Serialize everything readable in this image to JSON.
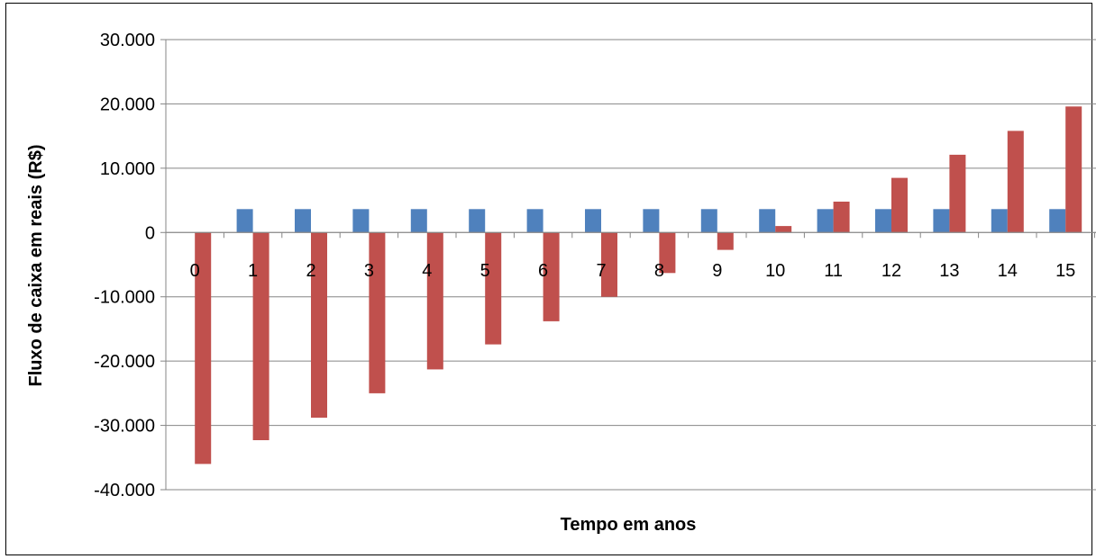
{
  "chart_data": {
    "type": "bar",
    "title": "",
    "xlabel": "Tempo em anos",
    "ylabel": "Fluxo de caixa em reais (R$)",
    "ylim": [
      -40000,
      30000
    ],
    "yticks": [
      30000,
      20000,
      10000,
      0,
      -10000,
      -20000,
      -30000,
      -40000
    ],
    "ytick_labels": [
      "30.000",
      "20.000",
      "10.000",
      "0",
      "-10.000",
      "-20.000",
      "-30.000",
      "-40.000"
    ],
    "categories": [
      "0",
      "1",
      "2",
      "3",
      "4",
      "5",
      "6",
      "7",
      "8",
      "9",
      "10",
      "11",
      "12",
      "13",
      "14",
      "15"
    ],
    "grid": true,
    "legend": "none",
    "series": [
      {
        "color": "#4F81BD",
        "values": [
          0,
          3640,
          3640,
          3640,
          3640,
          3640,
          3640,
          3640,
          3640,
          3640,
          3640,
          3640,
          3640,
          3640,
          3640,
          3640
        ]
      },
      {
        "color": "#C0504D",
        "values": [
          -36000,
          -32300,
          -28800,
          -25000,
          -21300,
          -17400,
          -13800,
          -10000,
          -6300,
          -2700,
          1000,
          4800,
          8500,
          12100,
          15800,
          19600
        ]
      }
    ]
  }
}
